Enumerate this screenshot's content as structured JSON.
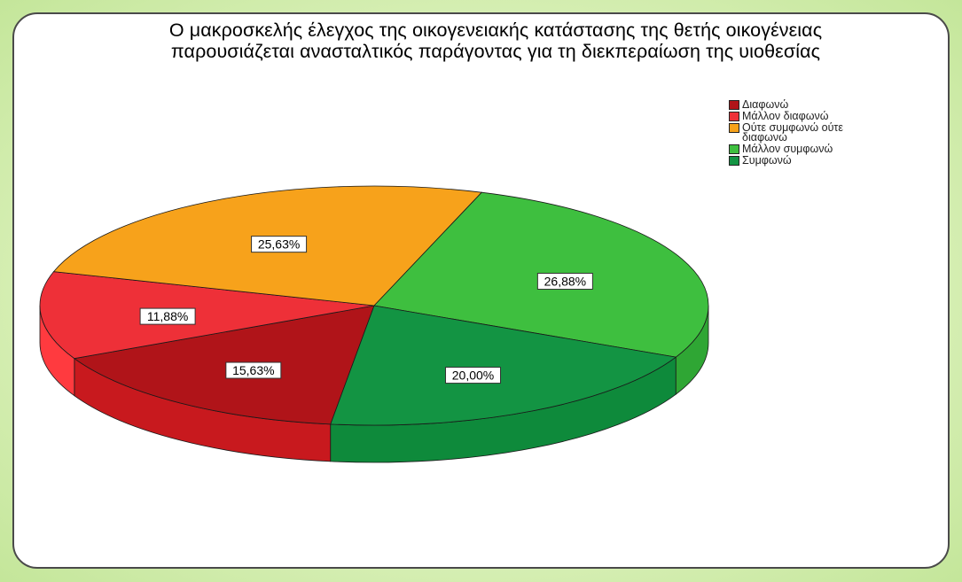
{
  "chart_data": {
    "type": "pie",
    "title": "Ο μακροσκελής έλεγχος της οικογενειακής κατάστασης της θετής οικογένειας παρουσιάζεται ανασταλτικός παράγοντας για τη διεκπεραίωση της υιοθεσίας",
    "title_lines": [
      "Ο μακροσκελής έλεγχος της οικογενειακής κατάστασης της θετής οικογένειας",
      "παρουσιάζεται ανασταλτικός παράγοντας για τη διεκπεραίωση της υιοθεσίας"
    ],
    "legend_position": "top-right",
    "categories": [
      "Διαφωνώ",
      "Μάλλον διαφωνώ",
      "Ούτε συμφωνώ ούτε διαφωνώ",
      "Μάλλον συμφωνώ",
      "Συμφωνώ"
    ],
    "legend_labels": [
      [
        "Διαφωνώ"
      ],
      [
        "Μάλλον διαφωνώ"
      ],
      [
        "Ούτε συμφωνώ ούτε",
        "διαφωνώ"
      ],
      [
        "Μάλλον συμφωνώ"
      ],
      [
        "Συμφωνώ"
      ]
    ],
    "values": [
      15.63,
      11.88,
      25.63,
      26.88,
      20.0
    ],
    "value_labels": [
      "15,63%",
      "11,88%",
      "25,63%",
      "26,88%",
      "20,00%"
    ],
    "colors": [
      "#b01419",
      "#ee3038",
      "#f7a21b",
      "#3ebf3f",
      "#139443"
    ],
    "side_colors": [
      "#c8191e",
      "#ff3a3f",
      "#d7861a",
      "#2fa634",
      "#0e8a3b"
    ],
    "units": "%"
  }
}
